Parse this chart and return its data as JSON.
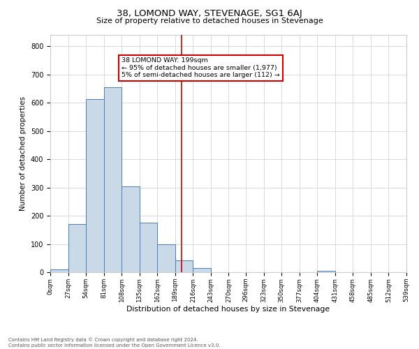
{
  "title": "38, LOMOND WAY, STEVENAGE, SG1 6AJ",
  "subtitle": "Size of property relative to detached houses in Stevenage",
  "xlabel": "Distribution of detached houses by size in Stevenage",
  "ylabel": "Number of detached properties",
  "bin_edges": [
    0,
    27,
    54,
    81,
    108,
    135,
    162,
    189,
    216,
    243,
    270,
    296,
    323,
    350,
    377,
    404,
    431,
    458,
    485,
    512,
    539
  ],
  "bar_heights": [
    10,
    170,
    612,
    655,
    305,
    175,
    100,
    42,
    15,
    0,
    0,
    0,
    0,
    0,
    0,
    5,
    0,
    0,
    0,
    0
  ],
  "bar_facecolor": "#c9d9e8",
  "bar_edgecolor": "#4a7cb5",
  "vline_x": 199,
  "vline_color": "#cc0000",
  "annotation_title": "38 LOMOND WAY: 199sqm",
  "annotation_line1": "← 95% of detached houses are smaller (1,977)",
  "annotation_line2": "5% of semi-detached houses are larger (112) →",
  "annotation_box_edgecolor": "#cc0000",
  "ylim": [
    0,
    840
  ],
  "yticks": [
    0,
    100,
    200,
    300,
    400,
    500,
    600,
    700,
    800
  ],
  "tick_labels": [
    "0sqm",
    "27sqm",
    "54sqm",
    "81sqm",
    "108sqm",
    "135sqm",
    "162sqm",
    "189sqm",
    "216sqm",
    "243sqm",
    "270sqm",
    "296sqm",
    "323sqm",
    "350sqm",
    "377sqm",
    "404sqm",
    "431sqm",
    "458sqm",
    "485sqm",
    "512sqm",
    "539sqm"
  ],
  "footer_line1": "Contains HM Land Registry data © Crown copyright and database right 2024.",
  "footer_line2": "Contains public sector information licensed under the Open Government Licence v3.0.",
  "background_color": "#ffffff",
  "grid_color": "#cccccc"
}
